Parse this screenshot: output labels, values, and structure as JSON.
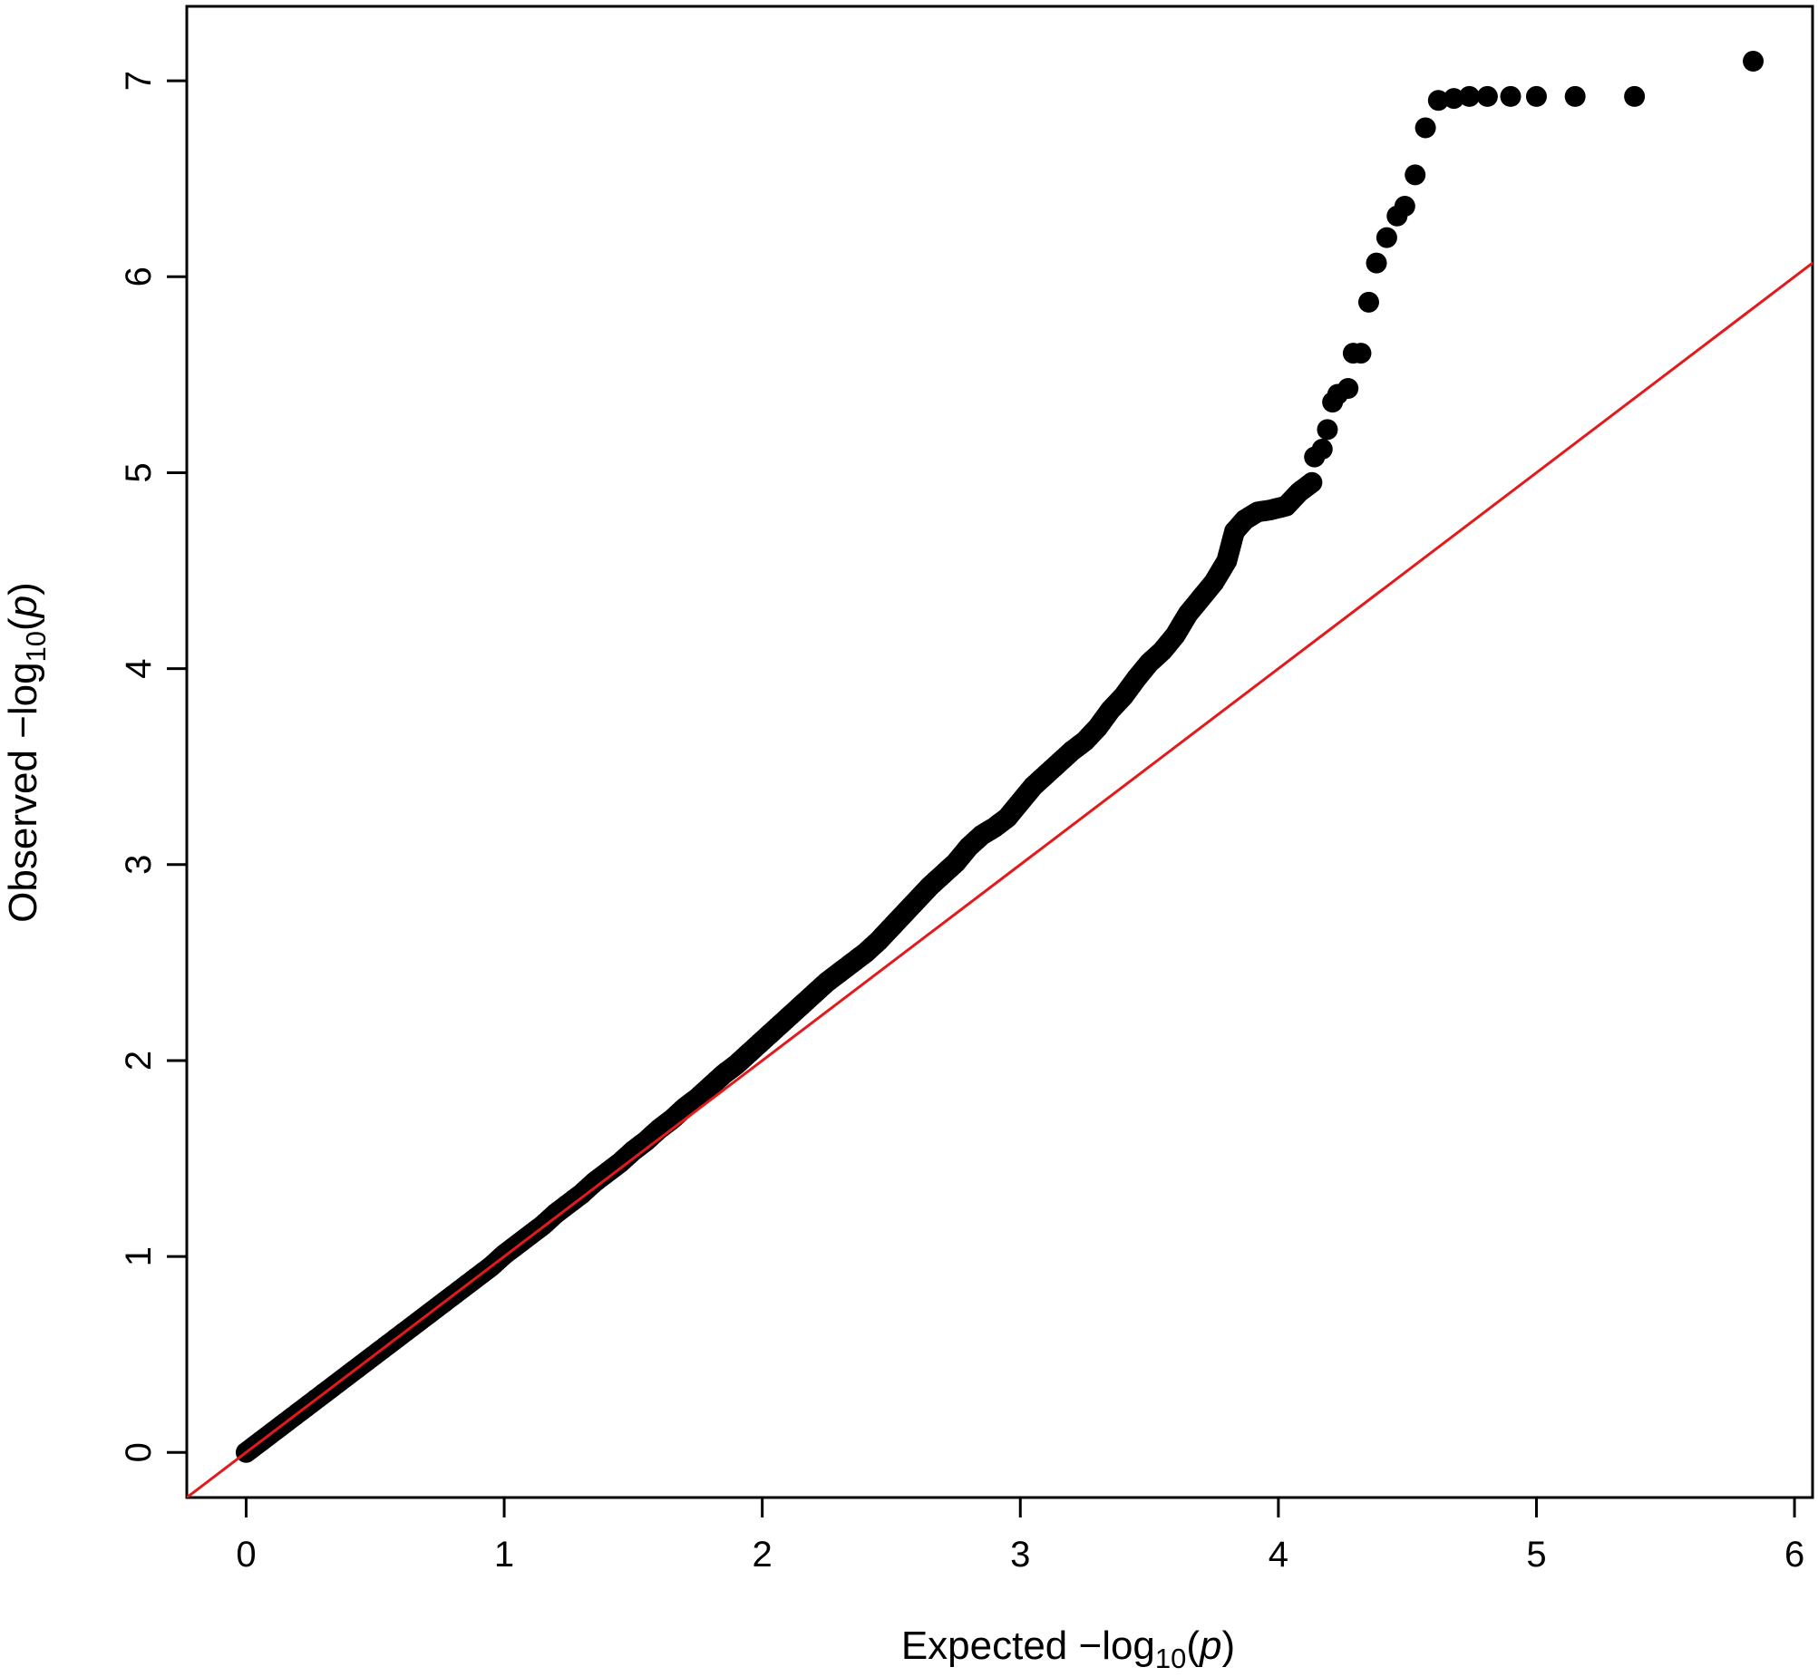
{
  "chart_data": {
    "type": "scatter",
    "title": "",
    "xlabel": {
      "prefix": "Expected  −log",
      "subscript": "10",
      "open": "(",
      "var": "p",
      "close": ")"
    },
    "ylabel": {
      "prefix": "Observed  −log",
      "subscript": "10",
      "open": "(",
      "var": "p",
      "close": ")"
    },
    "xlim": [
      -0.23,
      6.07
    ],
    "ylim": [
      -0.23,
      7.38
    ],
    "x_ticks": [
      "0",
      "1",
      "2",
      "3",
      "4",
      "5",
      "6"
    ],
    "y_ticks": [
      "0",
      "1",
      "2",
      "3",
      "4",
      "5",
      "6",
      "7"
    ],
    "grid": false,
    "legend": "none",
    "point_color": "#000000",
    "reference_line": {
      "type": "y=x",
      "color": "#e31a1c"
    },
    "series": [
      {
        "points": [
          [
            0.0,
            0.0
          ],
          [
            0.05,
            0.05
          ],
          [
            0.1,
            0.1
          ],
          [
            0.15,
            0.15
          ],
          [
            0.2,
            0.2
          ],
          [
            0.25,
            0.25
          ],
          [
            0.3,
            0.3
          ],
          [
            0.35,
            0.35
          ],
          [
            0.4,
            0.4
          ],
          [
            0.45,
            0.45
          ],
          [
            0.5,
            0.5
          ],
          [
            0.55,
            0.55
          ],
          [
            0.6,
            0.6
          ],
          [
            0.65,
            0.65
          ],
          [
            0.7,
            0.7
          ],
          [
            0.75,
            0.75
          ],
          [
            0.8,
            0.8
          ],
          [
            0.85,
            0.85
          ],
          [
            0.9,
            0.9
          ],
          [
            0.95,
            0.95
          ],
          [
            1.0,
            1.01
          ],
          [
            1.05,
            1.06
          ],
          [
            1.1,
            1.11
          ],
          [
            1.15,
            1.16
          ],
          [
            1.2,
            1.22
          ],
          [
            1.25,
            1.27
          ],
          [
            1.3,
            1.32
          ],
          [
            1.35,
            1.38
          ],
          [
            1.4,
            1.43
          ],
          [
            1.45,
            1.48
          ],
          [
            1.5,
            1.54
          ],
          [
            1.55,
            1.59
          ],
          [
            1.6,
            1.65
          ],
          [
            1.65,
            1.7
          ],
          [
            1.7,
            1.76
          ],
          [
            1.75,
            1.81
          ],
          [
            1.8,
            1.87
          ],
          [
            1.85,
            1.93
          ],
          [
            1.9,
            1.98
          ],
          [
            1.95,
            2.04
          ],
          [
            2.0,
            2.1
          ],
          [
            2.05,
            2.16
          ],
          [
            2.1,
            2.22
          ],
          [
            2.15,
            2.28
          ],
          [
            2.2,
            2.34
          ],
          [
            2.25,
            2.4
          ],
          [
            2.3,
            2.45
          ],
          [
            2.35,
            2.5
          ],
          [
            2.4,
            2.55
          ],
          [
            2.45,
            2.61
          ],
          [
            2.5,
            2.68
          ],
          [
            2.55,
            2.75
          ],
          [
            2.6,
            2.82
          ],
          [
            2.65,
            2.89
          ],
          [
            2.7,
            2.95
          ],
          [
            2.75,
            3.01
          ],
          [
            2.8,
            3.09
          ],
          [
            2.85,
            3.15
          ],
          [
            2.9,
            3.19
          ],
          [
            2.95,
            3.24
          ],
          [
            3.0,
            3.32
          ],
          [
            3.05,
            3.4
          ],
          [
            3.1,
            3.46
          ],
          [
            3.15,
            3.52
          ],
          [
            3.2,
            3.58
          ],
          [
            3.25,
            3.63
          ],
          [
            3.3,
            3.7
          ],
          [
            3.35,
            3.79
          ],
          [
            3.4,
            3.86
          ],
          [
            3.45,
            3.95
          ],
          [
            3.5,
            4.03
          ],
          [
            3.55,
            4.09
          ],
          [
            3.6,
            4.17
          ],
          [
            3.65,
            4.28
          ],
          [
            3.7,
            4.36
          ],
          [
            3.75,
            4.44
          ],
          [
            3.8,
            4.55
          ],
          [
            3.83,
            4.7
          ],
          [
            3.87,
            4.76
          ],
          [
            3.92,
            4.8
          ],
          [
            3.97,
            4.81
          ],
          [
            4.03,
            4.83
          ],
          [
            4.08,
            4.9
          ],
          [
            4.13,
            4.95
          ],
          [
            4.14,
            5.08
          ],
          [
            4.17,
            5.12
          ],
          [
            4.19,
            5.22
          ],
          [
            4.21,
            5.36
          ],
          [
            4.23,
            5.4
          ],
          [
            4.27,
            5.43
          ],
          [
            4.29,
            5.61
          ],
          [
            4.32,
            5.61
          ],
          [
            4.35,
            5.87
          ],
          [
            4.38,
            6.07
          ],
          [
            4.42,
            6.2
          ],
          [
            4.46,
            6.31
          ],
          [
            4.49,
            6.36
          ],
          [
            4.53,
            6.52
          ],
          [
            4.57,
            6.76
          ],
          [
            4.62,
            6.9
          ],
          [
            4.68,
            6.91
          ],
          [
            4.74,
            6.92
          ],
          [
            4.81,
            6.92
          ],
          [
            4.9,
            6.92
          ],
          [
            5.0,
            6.92
          ],
          [
            5.15,
            6.92
          ],
          [
            5.38,
            6.92
          ],
          [
            5.84,
            7.1
          ]
        ]
      }
    ]
  }
}
